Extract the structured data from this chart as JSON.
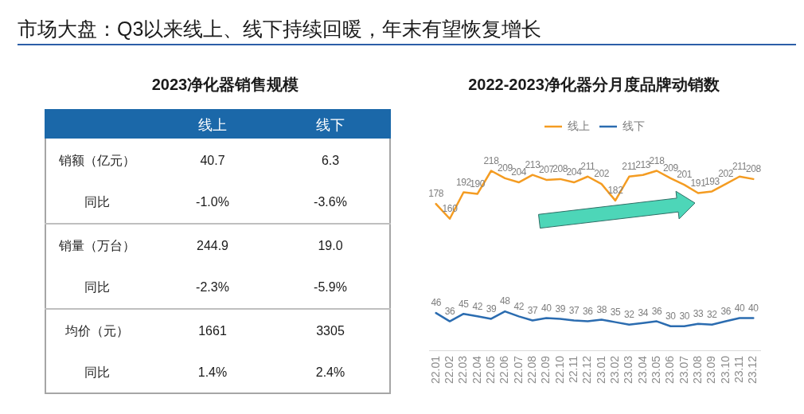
{
  "chart_data": [
    {
      "type": "other",
      "title": "市场大盘：Q3以来线上、线下持续回暖，年末有望恢复增长"
    },
    {
      "type": "other",
      "title": "2023净化器销售规模",
      "categories": [
        "线上",
        "线下"
      ],
      "y_categories": [
        "销额（亿元）",
        "同比",
        "销量（万台）",
        "同比",
        "均价（元）",
        "同比"
      ],
      "cell_labels": [
        [
          "40.7",
          "6.3"
        ],
        [
          "-1.0%",
          "-3.6%"
        ],
        [
          "244.9",
          "19.0"
        ],
        [
          "-2.3%",
          "-5.9%"
        ],
        [
          "1661",
          "3305"
        ],
        [
          "1.4%",
          "2.4%"
        ]
      ]
    },
    {
      "type": "line",
      "title": "2022-2023净化器分月度品牌动销数",
      "categories": [
        "22.01",
        "22.02",
        "22.03",
        "22.04",
        "22.05",
        "22.06",
        "22.07",
        "22.08",
        "22.09",
        "22.10",
        "22.11",
        "22.12",
        "23.01",
        "23.02",
        "23.03",
        "23.04",
        "23.05",
        "23.06",
        "23.07",
        "23.08",
        "23.09",
        "23.10",
        "23.11",
        "23.12"
      ],
      "series": [
        {
          "name": "线上",
          "color": "#f49c22",
          "values": [
            178,
            160,
            192,
            190,
            218,
            209,
            204,
            213,
            207,
            208,
            204,
            211,
            202,
            182,
            211,
            213,
            218,
            209,
            201,
            191,
            193,
            202,
            211,
            208
          ]
        },
        {
          "name": "线下",
          "color": "#2b6cb0",
          "values": [
            46,
            36,
            45,
            42,
            39,
            48,
            42,
            37,
            40,
            39,
            37,
            36,
            38,
            35,
            32,
            34,
            36,
            30,
            30,
            33,
            32,
            36,
            40,
            40
          ]
        }
      ],
      "tick_labels": "x",
      "legend": "top",
      "marker": "none",
      "data_labels": true
    }
  ]
}
